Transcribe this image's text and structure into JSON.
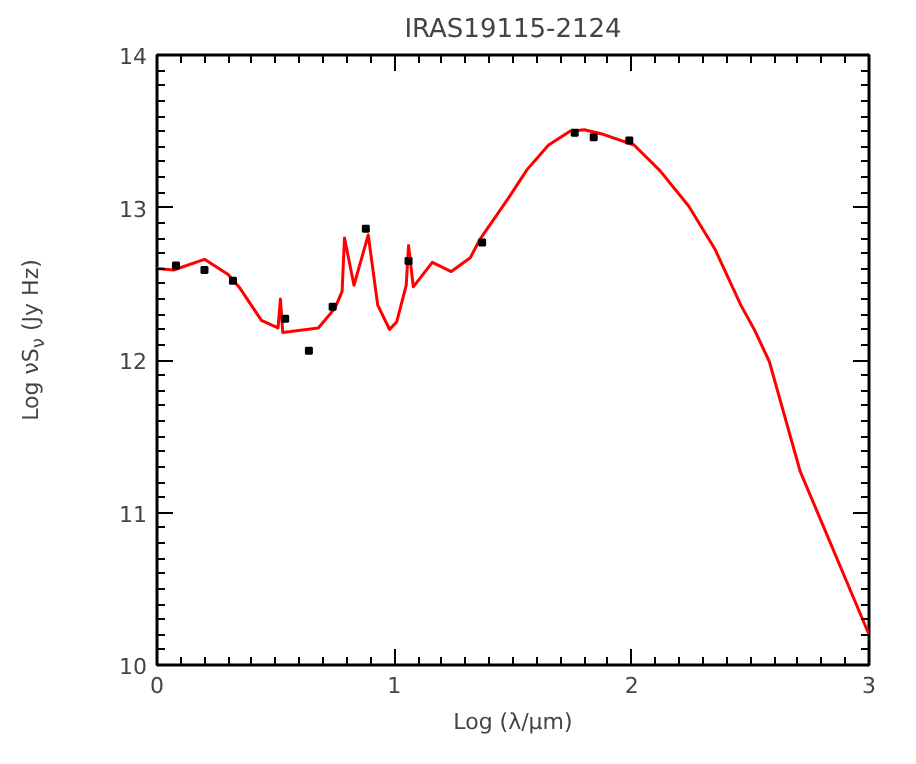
{
  "chart_data": {
    "type": "line",
    "title": "IRAS19115-2124",
    "xlabel": "Log (λ/μm)",
    "ylabel": "Log νS$_{ν}$ (Jy Hz)",
    "xlim": [
      0,
      3
    ],
    "ylim": [
      10,
      14
    ],
    "xticks": [
      0,
      1,
      2,
      3
    ],
    "yticks": [
      10,
      11,
      12,
      13,
      14
    ],
    "grid": false,
    "series": [
      {
        "color": "#ff0000",
        "line_style": "solid",
        "x": [
          0.0,
          0.07,
          0.2,
          0.3,
          0.35,
          0.44,
          0.51,
          0.52,
          0.53,
          0.68,
          0.75,
          0.78,
          0.79,
          0.83,
          0.89,
          0.93,
          0.98,
          1.01,
          1.05,
          1.06,
          1.08,
          1.16,
          1.24,
          1.32,
          1.36,
          1.48,
          1.56,
          1.65,
          1.74,
          1.8,
          1.88,
          2.01,
          2.12,
          2.24,
          2.35,
          2.46,
          2.52,
          2.58,
          2.71,
          3.0
        ],
        "values": [
          12.6,
          12.59,
          12.66,
          12.56,
          12.47,
          12.26,
          12.21,
          12.4,
          12.18,
          12.21,
          12.34,
          12.45,
          12.8,
          12.49,
          12.82,
          12.36,
          12.2,
          12.25,
          12.49,
          12.75,
          12.48,
          12.64,
          12.58,
          12.67,
          12.79,
          13.06,
          13.25,
          13.41,
          13.5,
          13.51,
          13.48,
          13.41,
          13.24,
          13.01,
          12.73,
          12.36,
          12.19,
          11.99,
          11.27,
          10.2
        ]
      },
      {
        "type": "scatter",
        "color": "#000000",
        "marker": "square",
        "x": [
          0.08,
          0.2,
          0.32,
          0.54,
          0.64,
          0.74,
          0.88,
          1.06,
          1.37,
          1.76,
          1.84,
          1.99
        ],
        "values": [
          12.62,
          12.59,
          12.52,
          12.27,
          12.06,
          12.35,
          12.86,
          12.65,
          12.77,
          13.49,
          13.46,
          13.44
        ]
      }
    ]
  }
}
